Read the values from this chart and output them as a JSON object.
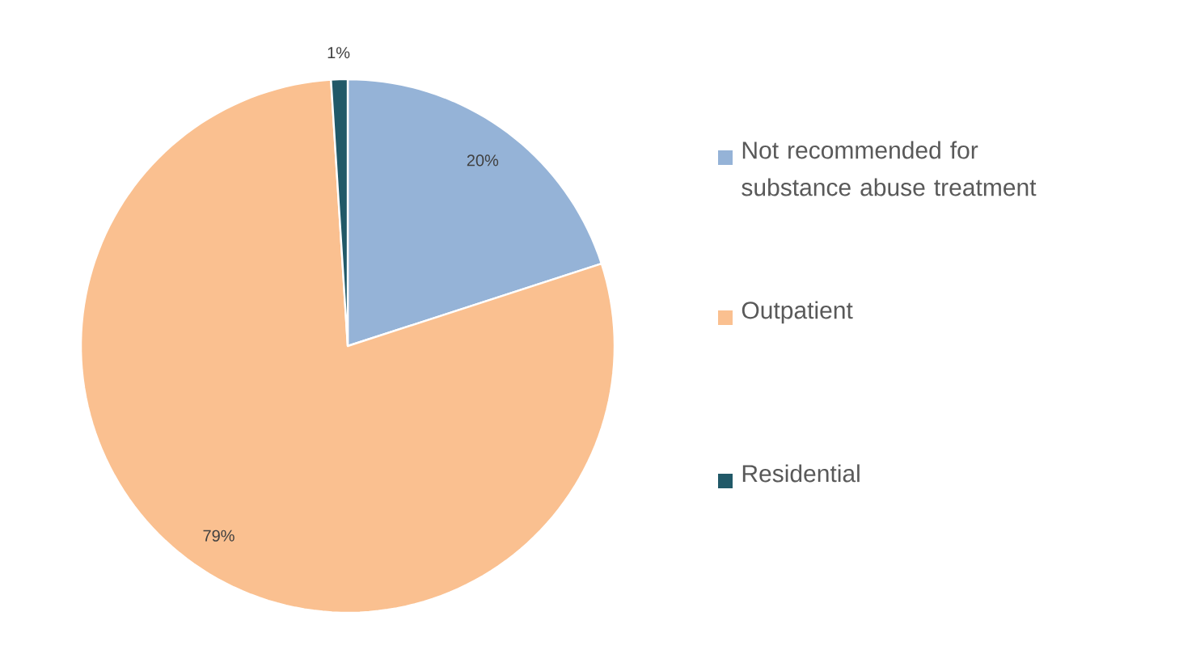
{
  "chart_data": {
    "type": "pie",
    "categories": [
      "Not recommended for substance abuse treatment",
      "Outpatient",
      "Residential"
    ],
    "values": [
      20,
      79,
      1
    ],
    "colors": [
      "#95b3d7",
      "#fac090",
      "#215968"
    ],
    "value_labels": [
      "20%",
      "79%",
      "1%"
    ],
    "legend": "right"
  }
}
